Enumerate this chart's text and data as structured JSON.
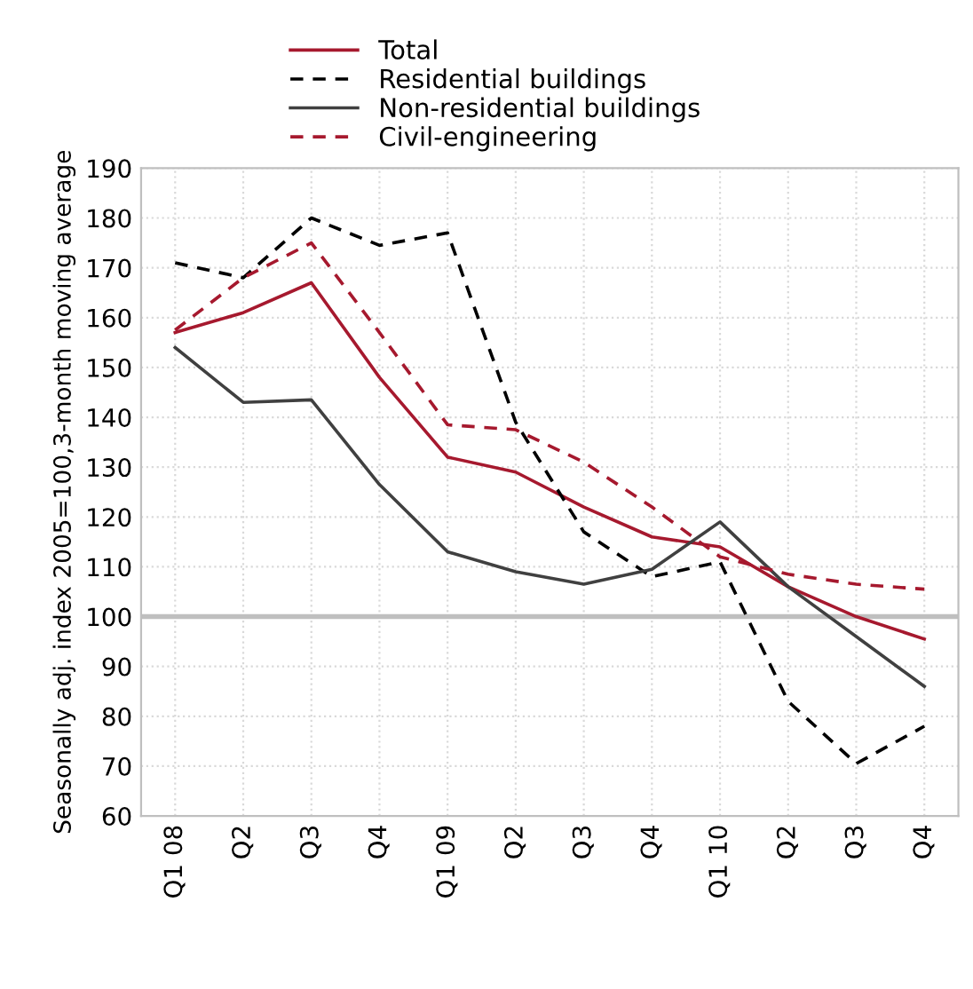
{
  "chart_data": {
    "type": "line",
    "ylabel": "Seasonally adj. index 2005=100,3-month moving average",
    "categories": [
      "Q1 08",
      "Q2",
      "Q3",
      "Q4",
      "Q1 09",
      "Q2",
      "Q3",
      "Q4",
      "Q1 10",
      "Q2",
      "Q3",
      "Q4"
    ],
    "series": [
      {
        "name": "Total",
        "color": "#a6192e",
        "line_style": "solid",
        "values": [
          157,
          161,
          167,
          148,
          132,
          129,
          122,
          116,
          114,
          106,
          100,
          95.5
        ]
      },
      {
        "name": "Residential buildings",
        "color": "#000000",
        "line_style": "dashed",
        "values": [
          171,
          168,
          180,
          174.5,
          177,
          139,
          117,
          108,
          111,
          83,
          70.5,
          78
        ]
      },
      {
        "name": "Non-residential buildings",
        "color": "#404040",
        "line_style": "solid",
        "values": [
          154,
          143,
          143.5,
          126.5,
          113,
          109,
          106.5,
          109.5,
          119,
          106,
          96,
          86
        ]
      },
      {
        "name": "Civil-engineering",
        "color": "#a6192e",
        "line_style": "dashed",
        "values": [
          157.5,
          168,
          175,
          157,
          138.5,
          137.5,
          131,
          122,
          112,
          108.5,
          106.5,
          105.5
        ]
      }
    ],
    "ylim": [
      60,
      190
    ],
    "yticks": [
      60,
      70,
      80,
      90,
      100,
      110,
      120,
      130,
      140,
      150,
      160,
      170,
      180,
      190
    ],
    "ref_lines": [
      {
        "axis": "y",
        "value": 100,
        "color": "#bfbfbf"
      }
    ],
    "grid": true,
    "legend": "top left",
    "marker": "none"
  }
}
